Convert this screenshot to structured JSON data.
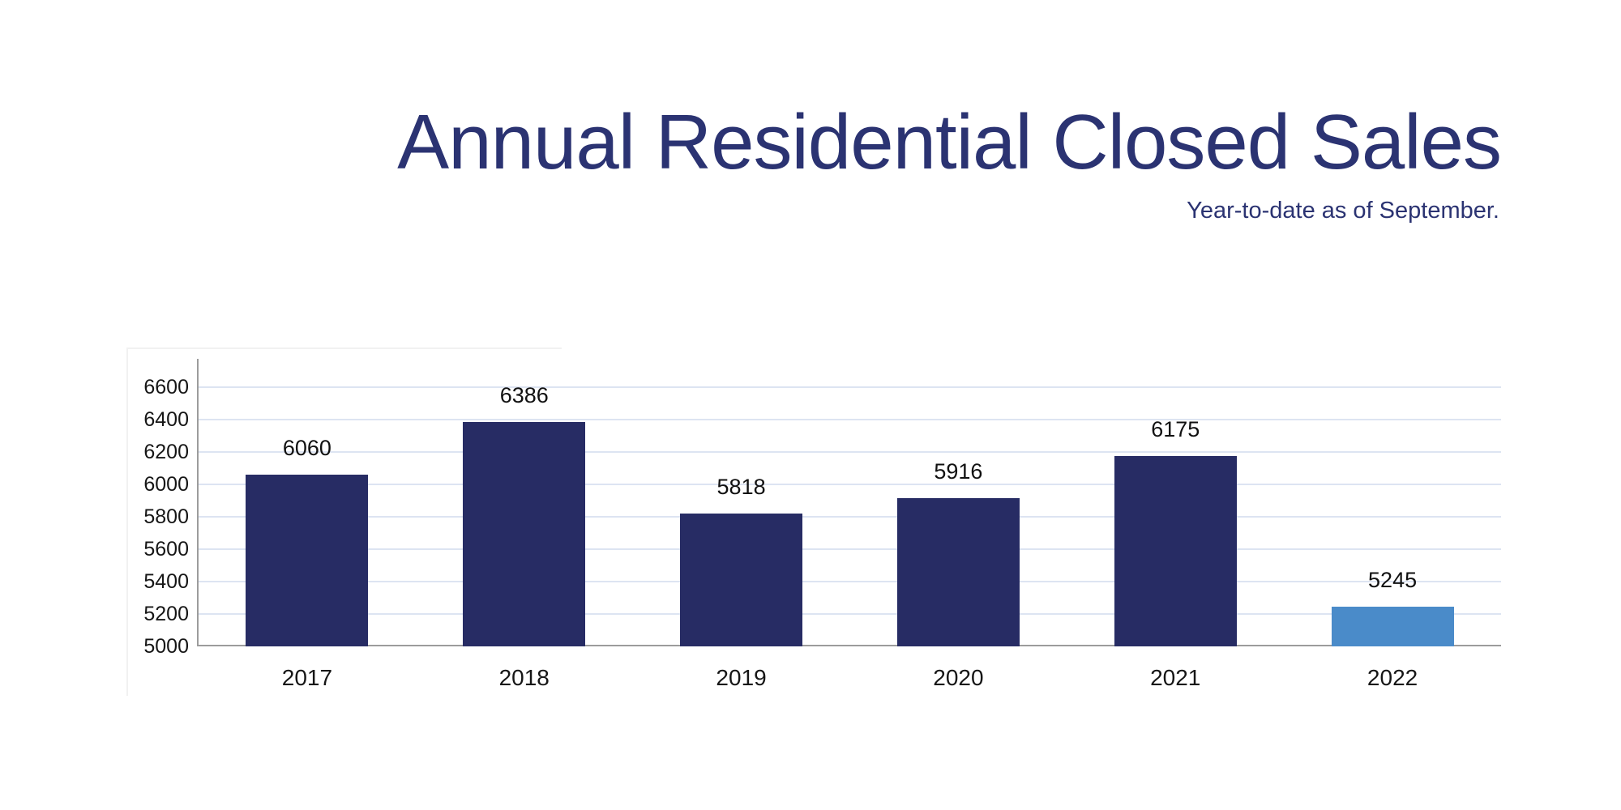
{
  "header": {
    "title": "Annual Residential Closed Sales",
    "subtitle": "Year-to-date as of September."
  },
  "colors": {
    "title_text": "#2b3372",
    "subtitle_text": "#2b3372",
    "bar": "#272c64",
    "bar_highlight": "#4a8bc9",
    "gridline": "#dde4f2",
    "axis_line": "#9c9c9c",
    "tick_label_text": "#161616",
    "value_label_text": "#111111"
  },
  "chart_data": {
    "type": "bar",
    "title": "Annual Residential Closed Sales",
    "subtitle": "Year-to-date as of September.",
    "categories": [
      "2017",
      "2018",
      "2019",
      "2020",
      "2021",
      "2022"
    ],
    "values": [
      6060,
      6386,
      5818,
      5916,
      6175,
      5245
    ],
    "highlight_index": 5,
    "series_note": "single series; 2022 bar highlighted in light blue, all others dark navy",
    "xlabel": "",
    "ylabel": "",
    "ylim": [
      5000,
      6700
    ],
    "yticks": [
      5000,
      5200,
      5400,
      5600,
      5800,
      6000,
      6200,
      6400,
      6600
    ],
    "grid": true,
    "data_labels": true,
    "legend_position": "none"
  }
}
